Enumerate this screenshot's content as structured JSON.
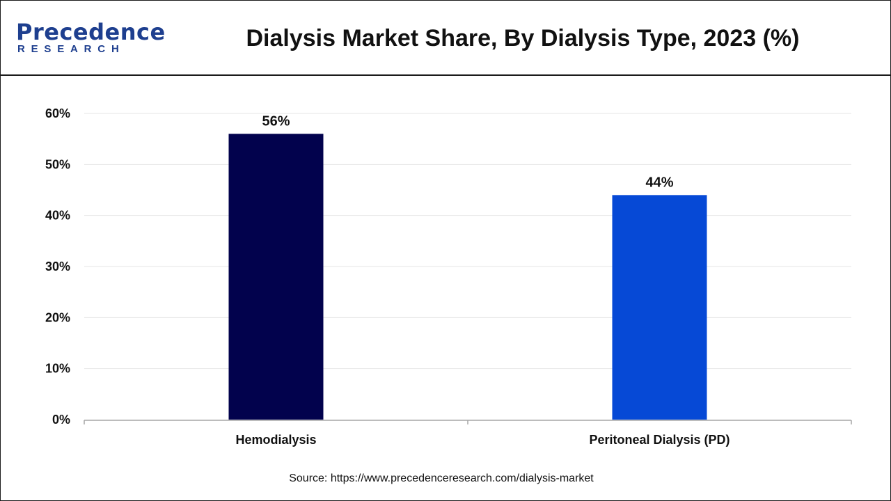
{
  "header": {
    "title": "Dialysis Market Share, By Dialysis Type, 2023 (%)",
    "logo_top": "Precedence",
    "logo_bottom": "RESEARCH"
  },
  "colors": {
    "logo": "#1e3f8f",
    "hemodialysis": "#02024d",
    "peritoneal": "#0649d6"
  },
  "chart_data": {
    "type": "bar",
    "title": "Dialysis Market Share, By Dialysis Type, 2023 (%)",
    "categories": [
      "Hemodialysis",
      "Peritoneal Dialysis (PD)"
    ],
    "values": [
      56,
      44
    ],
    "data_labels": [
      "56%",
      "44%"
    ],
    "bar_colors": [
      "#02024d",
      "#0649d6"
    ],
    "ylim": [
      0,
      60
    ],
    "yticks": [
      0,
      10,
      20,
      30,
      40,
      50,
      60
    ],
    "ytick_labels": [
      "0%",
      "10%",
      "20%",
      "30%",
      "40%",
      "50%",
      "60%"
    ],
    "grid": true,
    "legend": "none"
  },
  "source": "Source: https://www.precedenceresearch.com/dialysis-market"
}
